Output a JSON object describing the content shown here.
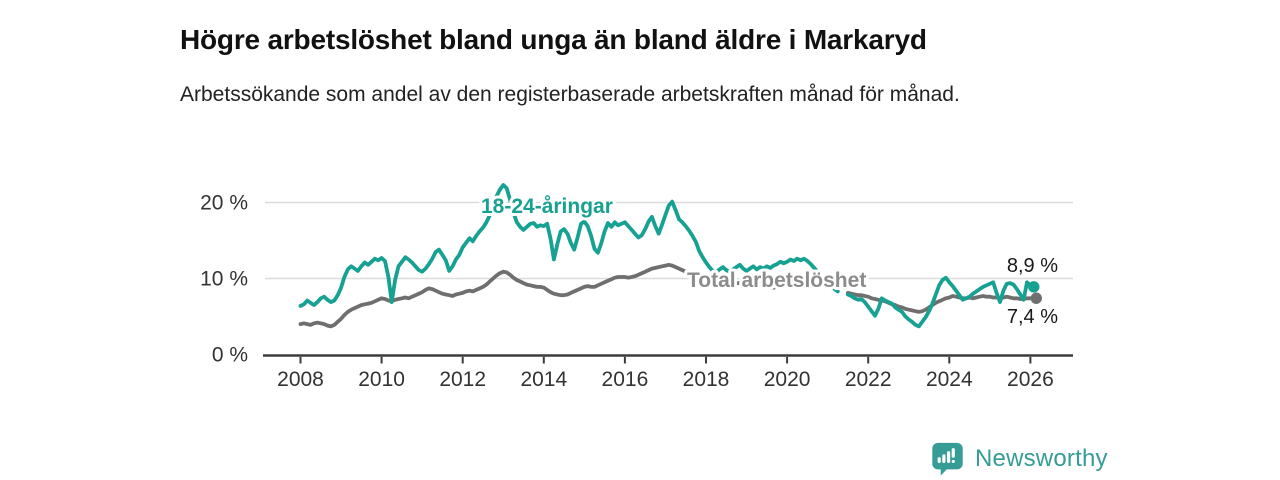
{
  "chart_data": {
    "type": "line",
    "title": "Högre arbetslöshet bland unga än bland äldre i Markaryd",
    "subtitle": "Arbetssökande som andel av den registerbaserade arbetskraften månad för månad.",
    "x_axis": {
      "start_year": 2008,
      "frequency": "monthly",
      "tick_years": [
        2008,
        2010,
        2012,
        2014,
        2016,
        2018,
        2020,
        2022,
        2024,
        2026
      ]
    },
    "y_axis": {
      "unit": "%",
      "ticks": [
        {
          "value": 0,
          "label": "0 %"
        },
        {
          "value": 10,
          "label": "10 %"
        },
        {
          "value": 20,
          "label": "20 %"
        }
      ],
      "range": [
        0,
        23
      ],
      "gridlines_at": [
        10,
        20
      ]
    },
    "colors": {
      "youth": "#17a192",
      "total": "#6f6f6f",
      "total_label": "#8c8c8c",
      "axis": "#3c3c3c",
      "tick_text": "#333333",
      "gridline": "#dcdcdc",
      "end_label_text": "#191919"
    },
    "series": [
      {
        "id": "total",
        "name": "Total arbetslöshet",
        "end_label": "7,4 %",
        "end_value": 7.4,
        "values": [
          4.0,
          4.1,
          4.0,
          3.9,
          4.1,
          4.2,
          4.1,
          4.0,
          3.8,
          3.7,
          3.9,
          4.3,
          4.7,
          5.2,
          5.6,
          5.9,
          6.1,
          6.3,
          6.5,
          6.6,
          6.7,
          6.8,
          7.0,
          7.2,
          7.4,
          7.3,
          7.1,
          7.0,
          7.2,
          7.3,
          7.4,
          7.5,
          7.4,
          7.6,
          7.8,
          8.0,
          8.2,
          8.5,
          8.7,
          8.6,
          8.4,
          8.2,
          8.0,
          7.9,
          7.8,
          7.7,
          7.9,
          8.0,
          8.1,
          8.3,
          8.4,
          8.3,
          8.5,
          8.7,
          8.9,
          9.2,
          9.6,
          10.0,
          10.4,
          10.7,
          10.9,
          10.8,
          10.5,
          10.1,
          9.8,
          9.6,
          9.4,
          9.2,
          9.1,
          9.0,
          8.9,
          8.9,
          8.8,
          8.5,
          8.2,
          8.0,
          7.9,
          7.8,
          7.8,
          7.9,
          8.1,
          8.3,
          8.5,
          8.7,
          8.9,
          9.0,
          8.9,
          8.9,
          9.1,
          9.3,
          9.5,
          9.7,
          9.9,
          10.1,
          10.2,
          10.2,
          10.2,
          10.1,
          10.2,
          10.3,
          10.5,
          10.7,
          10.9,
          11.1,
          11.3,
          11.4,
          11.5,
          11.6,
          11.7,
          11.8,
          11.7,
          11.5,
          11.3,
          11.1,
          10.9,
          10.7,
          10.5,
          10.3,
          10.2,
          10.1,
          10.0,
          9.9,
          9.8,
          9.7,
          9.7,
          9.6,
          9.6,
          9.5,
          9.5,
          9.4,
          9.4,
          9.3,
          9.2,
          9.1,
          9.1,
          9.0,
          9.0,
          8.9,
          8.9,
          8.8,
          8.8,
          8.9,
          9.0,
          9.1,
          9.2,
          9.3,
          9.5,
          9.7,
          9.6,
          9.5,
          9.4,
          9.2,
          9.0,
          8.8,
          null,
          null,
          null,
          null,
          null,
          null,
          null,
          null,
          8.1,
          8.0,
          7.9,
          7.8,
          7.8,
          7.7,
          7.6,
          7.4,
          7.3,
          7.2,
          7.1,
          7.0,
          6.8,
          6.6,
          6.5,
          6.3,
          6.2,
          6.0,
          5.9,
          5.8,
          5.7,
          5.6,
          5.7,
          5.9,
          6.2,
          6.5,
          6.8,
          7.0,
          7.2,
          7.4,
          7.5,
          7.7,
          7.6,
          7.5,
          7.4,
          7.4,
          7.5,
          7.4,
          7.5,
          7.6,
          7.7,
          7.6,
          7.6,
          7.5,
          7.5,
          7.4,
          7.5,
          7.6,
          7.5,
          7.4,
          7.4,
          7.3,
          7.3,
          7.4,
          7.4,
          7.4
        ]
      },
      {
        "id": "youth",
        "name": "18-24-åringar",
        "end_label": "8,9 %",
        "end_value": 8.9,
        "values": [
          6.4,
          6.6,
          7.1,
          6.8,
          6.5,
          6.9,
          7.4,
          7.6,
          7.2,
          6.9,
          7.1,
          7.8,
          8.8,
          10.2,
          11.2,
          11.6,
          11.3,
          11.0,
          11.6,
          12.1,
          11.8,
          12.2,
          12.6,
          12.4,
          12.7,
          12.3,
          10.2,
          6.9,
          9.8,
          11.6,
          12.2,
          12.8,
          12.5,
          12.1,
          11.6,
          11.1,
          10.9,
          11.3,
          11.9,
          12.6,
          13.5,
          13.8,
          13.1,
          12.4,
          11.0,
          11.6,
          12.5,
          13.1,
          14.1,
          14.7,
          15.3,
          14.9,
          15.6,
          16.2,
          16.7,
          17.4,
          18.3,
          19.5,
          20.8,
          21.7,
          22.3,
          21.9,
          20.4,
          18.7,
          17.4,
          16.8,
          16.4,
          16.8,
          17.2,
          17.3,
          16.8,
          17.0,
          16.9,
          17.2,
          15.2,
          12.5,
          14.5,
          16.2,
          16.5,
          15.9,
          14.7,
          13.8,
          15.4,
          17.2,
          17.5,
          16.9,
          15.6,
          13.9,
          13.4,
          14.6,
          16.2,
          17.3,
          16.8,
          17.4,
          17.0,
          17.2,
          17.4,
          16.9,
          16.4,
          15.9,
          15.4,
          15.7,
          16.5,
          17.5,
          18.1,
          16.9,
          15.9,
          17.1,
          18.4,
          19.6,
          20.1,
          19.0,
          17.8,
          17.4,
          16.9,
          16.3,
          15.6,
          14.8,
          13.6,
          12.8,
          12.1,
          11.5,
          11.0,
          10.8,
          11.2,
          11.5,
          11.1,
          10.9,
          11.2,
          11.5,
          11.8,
          11.3,
          11.0,
          11.3,
          11.6,
          11.2,
          11.5,
          11.3,
          11.6,
          11.4,
          11.7,
          11.9,
          12.2,
          12.0,
          12.2,
          12.5,
          12.3,
          12.6,
          12.4,
          12.6,
          12.3,
          11.9,
          11.4,
          10.9,
          null,
          null,
          null,
          null,
          8.6,
          8.3,
          null,
          null,
          7.9,
          7.7,
          7.4,
          7.2,
          7.3,
          6.9,
          6.3,
          5.7,
          5.1,
          6.0,
          7.4,
          7.1,
          6.9,
          6.7,
          6.2,
          5.9,
          5.6,
          5.0,
          4.6,
          4.3,
          3.9,
          3.7,
          4.3,
          4.9,
          5.7,
          6.7,
          7.9,
          9.1,
          9.8,
          10.1,
          9.5,
          9.0,
          8.4,
          7.8,
          7.2,
          7.4,
          7.6,
          8.0,
          8.3,
          8.6,
          8.9,
          9.1,
          9.3,
          9.5,
          8.1,
          6.9,
          8.4,
          9.3,
          9.4,
          9.2,
          8.6,
          7.9,
          7.2,
          9.5,
          9.1,
          8.9
        ]
      }
    ],
    "legend": "inline-series-labels",
    "grid": "horizontal-only"
  },
  "footer": {
    "brand": "Newsworthy",
    "brand_color": "#359d95",
    "logo_icon": "bar-chart-speech-bubble"
  }
}
